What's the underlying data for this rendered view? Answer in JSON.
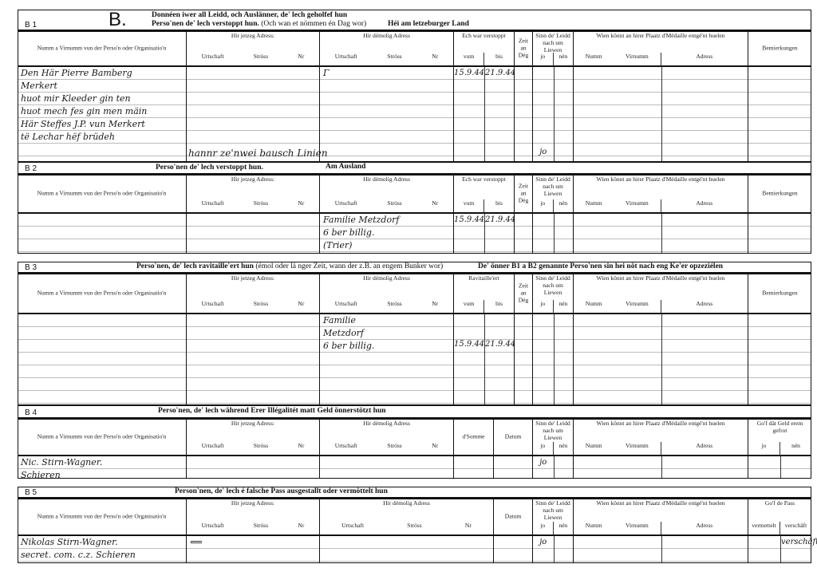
{
  "form_letter": "B.",
  "labels": {
    "name_col": "Numm a Virnumm vun der Perso'n oder Organisatio'n",
    "jetzeg": "Hir jetzeg Adress:",
    "demolig": "Hir démolig Adress",
    "urtschaft": "Urtschaft",
    "stross": "Stróss",
    "nr": "Nr",
    "vum": "vum",
    "bis": "bis",
    "zeit": "Zeit an Dég",
    "sinn": "Sinn de' Leidd nach um Liewen",
    "jo": "jo",
    "nen": "nén",
    "wien": "Wien könnt an hirer Plaatz d'Médaille entgé'nt huelen",
    "numm": "Numm",
    "virnumm": "Virnumm",
    "adress": "Adress",
    "bemierkungen": "Bemierkungen",
    "somme": "d'Somme",
    "datum": "Datum",
    "gof_geld": "Go'f dät Geld erem gefrot",
    "gof_pass": "Go'f de Pass",
    "vermettelt": "vermettelt",
    "verschaeft": "verschäft"
  },
  "sections": [
    {
      "code": "B 1",
      "title": [
        "Donnéen iwer all Leidd, och Auslänner, de' lech geholfef hun",
        "Perso'nen de' lech verstoppt hun."
      ],
      "title_note": "(Och wan et nömmen én Dag wor)",
      "aside": "Héi am letzeburger Land",
      "dates_label": "Ech war verstoppt",
      "entry": {
        "name": [
          "Den Här Pierre Bamberg",
          "Merkert",
          "huot mir Kleeder gin ten",
          "huot mech fes gin men mäin",
          "Här Steffes J.P. vun Merkert",
          "të Lechar hëf brüdeh"
        ],
        "demolig": [
          "Γ"
        ],
        "dates": [
          "15.9.44",
          "21.9.44"
        ],
        "sinn": [
          "jo",
          ""
        ]
      },
      "overflow": "hannr ze'nwei bausch Linien"
    },
    {
      "code": "B 2",
      "title": [
        "Perso'nen de' lech verstoppt hun."
      ],
      "aside": "Am Ausland",
      "dates_label": "Ech war verstoppt",
      "entry": {
        "name": [],
        "demolig": [
          "Familie Metzdorf",
          "6 ber billig.",
          "(Trier)"
        ],
        "dates": [
          "15.9.44",
          "21.9.44"
        ]
      }
    },
    {
      "code": "B 3",
      "title": [
        "Perso'nen, de' lech ravitaille'ert hun"
      ],
      "title_note": "(émol oder lä nger Zeit, wann der z.B. an engem Bunker wor)",
      "aside": "De' önner B1 a B2 genannte Perso'nen sin hei nöt nach eng Ke'er opzeziélen",
      "dates_label": "Ravitaille'ert",
      "entry": {
        "name": [],
        "demolig": [
          "Familie",
          "Metzdorf",
          "6 ber billig."
        ],
        "dates": [
          "15.9.44",
          "21.9.44"
        ]
      }
    },
    {
      "code": "B 4",
      "title": [
        "Perso'nen, de' lech während Erer Illégalitét matt Geld önnerstötzt hun"
      ],
      "entry": {
        "name": [
          "Nic. Stirn-Wagner.",
          "        Schieren"
        ],
        "sinn": [
          "jo",
          ""
        ]
      }
    },
    {
      "code": "B 5",
      "title": [
        "Person'nen, de' lech é falsche Pass ausgestallt oder vermöttelt hun"
      ],
      "entry": {
        "name": [
          "Nikolas Stirn-Wagner.",
          "secret. com. c.z. Schieren"
        ],
        "jetzeg": [
          "⟸"
        ],
        "sinn": [
          "jo",
          ""
        ],
        "gof": [
          "",
          "verschäft"
        ]
      }
    }
  ]
}
